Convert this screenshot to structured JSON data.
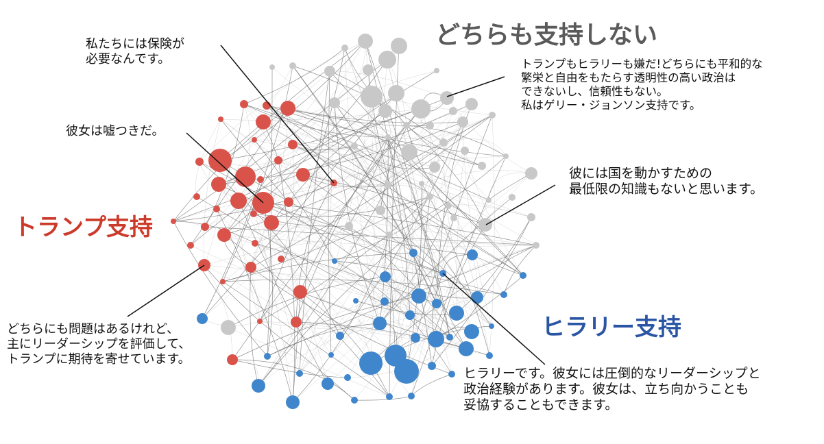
{
  "groups": {
    "neither": {
      "label": "どちらも支持しない",
      "color": "#c8c8c8",
      "label_color": "#5a5a5a"
    },
    "trump": {
      "label": "トランプ支持",
      "color": "#d9534a",
      "label_color": "#cc3a2a"
    },
    "hillary": {
      "label": "ヒラリー支持",
      "color": "#3f86cc",
      "label_color": "#2a55a4"
    }
  },
  "quotes": {
    "insurance": "私たちには保険が\n必要なんです。",
    "liar": "彼女は嘘つきだ。",
    "johnson": "トランプもヒラリーも嫌だ!どちらにも平和的な\n繁栄と自由をもたらす透明性の高い政治は\nできないし、信頼性もない。\n私はゲリー・ジョンソン支持です。",
    "knowledge": "彼には国を動かすための\n最低限の知識もないと思います。",
    "leadership": "どちらにも問題はあるけれど、\n主にリーダーシップを評価して、\nトランプに期待を寄せています。",
    "hillary_quote": "ヒラリーです。彼女には圧倒的なリーダーシップと\n政治経験があります。彼女は、立ち向かうことも\n妥協することもできます。"
  }
}
